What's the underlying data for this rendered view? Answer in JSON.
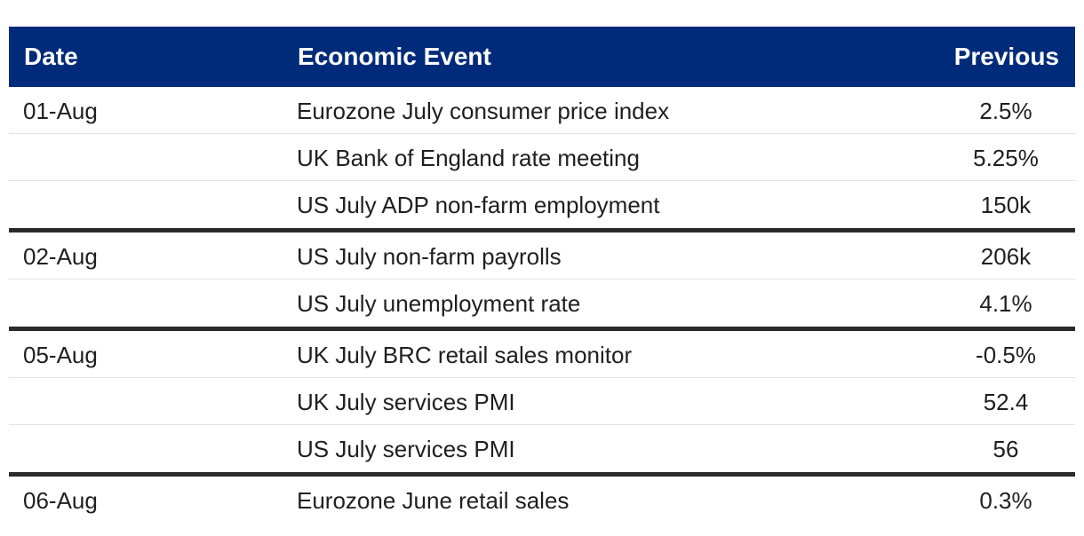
{
  "table": {
    "headers": {
      "date": "Date",
      "event": "Economic Event",
      "previous": "Previous"
    },
    "groups": [
      {
        "date": "01-Aug",
        "rows": [
          {
            "event": "Eurozone July consumer price index",
            "previous": "2.5%"
          },
          {
            "event": "UK Bank of England rate meeting",
            "previous": "5.25%"
          },
          {
            "event": "US July ADP non-farm employment",
            "previous": "150k"
          }
        ]
      },
      {
        "date": "02-Aug",
        "rows": [
          {
            "event": "US July non-farm payrolls",
            "previous": "206k"
          },
          {
            "event": "US July unemployment rate",
            "previous": "4.1%"
          }
        ]
      },
      {
        "date": "05-Aug",
        "rows": [
          {
            "event": "UK July BRC retail sales monitor",
            "previous": "-0.5%"
          },
          {
            "event": "UK July services PMI",
            "previous": "52.4"
          },
          {
            "event": "US July services PMI",
            "previous": "56"
          }
        ]
      },
      {
        "date": "06-Aug",
        "rows": [
          {
            "event": "Eurozone June retail sales",
            "previous": "0.3%"
          }
        ]
      }
    ]
  },
  "colors": {
    "header_bg": "#002b7a",
    "header_text": "#ffffff",
    "group_divider": "#2a2a2a",
    "row_divider": "#e2e2e2"
  }
}
